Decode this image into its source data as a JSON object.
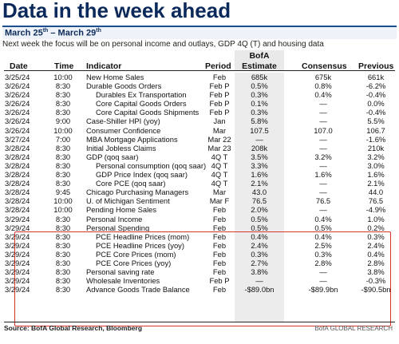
{
  "title": "Data in the week ahead",
  "date_range": {
    "start": "March 25",
    "start_sup": "th",
    "sep": " – ",
    "end": "March 29",
    "end_sup": "th"
  },
  "focus": "Next week the focus will be on personal income and outlays, GDP 4Q (T) and housing data",
  "columns": {
    "date": "Date",
    "time": "Time",
    "indicator": "Indicator",
    "period": "Period",
    "bofa_line1": "BofA",
    "bofa_line2": "Estimate",
    "consensus": "Consensus",
    "previous": "Previous"
  },
  "rows": [
    {
      "date": "3/25/24",
      "time": "10:00",
      "indicator": "New Home Sales",
      "period": "Feb",
      "estimate": "685k",
      "consensus": "675k",
      "previous": "661k",
      "indent": false
    },
    {
      "date": "3/26/24",
      "time": "8:30",
      "indicator": "Durable Goods Orders",
      "period": "Feb P",
      "estimate": "0.5%",
      "consensus": "0.8%",
      "previous": "-6.2%",
      "indent": false
    },
    {
      "date": "3/26/24",
      "time": "8:30",
      "indicator": "Durables Ex Transportation",
      "period": "Feb P",
      "estimate": "0.3%",
      "consensus": "0.4%",
      "previous": "-0.4%",
      "indent": true
    },
    {
      "date": "3/26/24",
      "time": "8:30",
      "indicator": "Core Capital Goods Orders",
      "period": "Feb P",
      "estimate": "0.1%",
      "consensus": "—",
      "previous": "0.0%",
      "indent": true
    },
    {
      "date": "3/26/24",
      "time": "8:30",
      "indicator": "Core Capital Goods Shipments",
      "period": "Feb P",
      "estimate": "0.3%",
      "consensus": "—",
      "previous": "-0.4%",
      "indent": true
    },
    {
      "date": "3/26/24",
      "time": "9:00",
      "indicator": "Case-Shiller HPI (yoy)",
      "period": "Jan",
      "estimate": "5.8%",
      "consensus": "—",
      "previous": "5.5%",
      "indent": false
    },
    {
      "date": "3/26/24",
      "time": "10:00",
      "indicator": "Consumer Confidence",
      "period": "Mar",
      "estimate": "107.5",
      "consensus": "107.0",
      "previous": "106.7",
      "indent": false
    },
    {
      "date": "3/27/24",
      "time": "7:00",
      "indicator": "MBA Mortgage Applications",
      "period": "Mar 22",
      "estimate": "—",
      "consensus": "—",
      "previous": "-1.6%",
      "indent": false
    },
    {
      "date": "3/28/24",
      "time": "8:30",
      "indicator": "Initial Jobless Claims",
      "period": "Mar 23",
      "estimate": "208k",
      "consensus": "—",
      "previous": "210k",
      "indent": false
    },
    {
      "date": "3/28/24",
      "time": "8:30",
      "indicator": "GDP (qoq saar)",
      "period": "4Q T",
      "estimate": "3.5%",
      "consensus": "3.2%",
      "previous": "3.2%",
      "indent": false
    },
    {
      "date": "3/28/24",
      "time": "8:30",
      "indicator": "Personal consumption (qoq saar)",
      "period": "4Q T",
      "estimate": "3.3%",
      "consensus": "—",
      "previous": "3.0%",
      "indent": true
    },
    {
      "date": "3/28/24",
      "time": "8:30",
      "indicator": "GDP Price Index (qoq saar)",
      "period": "4Q T",
      "estimate": "1.6%",
      "consensus": "1.6%",
      "previous": "1.6%",
      "indent": true
    },
    {
      "date": "3/28/24",
      "time": "8:30",
      "indicator": "Core PCE (qoq saar)",
      "period": "4Q T",
      "estimate": "2.1%",
      "consensus": "—",
      "previous": "2.1%",
      "indent": true
    },
    {
      "date": "3/28/24",
      "time": "9:45",
      "indicator": "Chicago Purchasing Managers",
      "period": "Mar",
      "estimate": "43.0",
      "consensus": "—",
      "previous": "44.0",
      "indent": false
    },
    {
      "date": "3/28/24",
      "time": "10:00",
      "indicator": "U. of Michigan Sentiment",
      "period": "Mar F",
      "estimate": "76.5",
      "consensus": "76.5",
      "previous": "76.5",
      "indent": false
    },
    {
      "date": "3/28/24",
      "time": "10:00",
      "indicator": "Pending Home Sales",
      "period": "Feb",
      "estimate": "2.0%",
      "consensus": "—",
      "previous": "-4.9%",
      "indent": false
    },
    {
      "date": "3/29/24",
      "time": "8:30",
      "indicator": "Personal Income",
      "period": "Feb",
      "estimate": "0.5%",
      "consensus": "0.4%",
      "previous": "1.0%",
      "indent": false
    },
    {
      "date": "3/29/24",
      "time": "8:30",
      "indicator": "Personal Spending",
      "period": "Feb",
      "estimate": "0.5%",
      "consensus": "0.5%",
      "previous": "0.2%",
      "indent": false
    },
    {
      "date": "3/29/24",
      "time": "8:30",
      "indicator": "PCE Headline Prices (mom)",
      "period": "Feb",
      "estimate": "0.4%",
      "consensus": "0.4%",
      "previous": "0.3%",
      "indent": true
    },
    {
      "date": "3/29/24",
      "time": "8:30",
      "indicator": "PCE Headline Prices (yoy)",
      "period": "Feb",
      "estimate": "2.4%",
      "consensus": "2.5%",
      "previous": "2.4%",
      "indent": true
    },
    {
      "date": "3/29/24",
      "time": "8:30",
      "indicator": "PCE Core Prices (mom)",
      "period": "Feb",
      "estimate": "0.3%",
      "consensus": "0.3%",
      "previous": "0.4%",
      "indent": true
    },
    {
      "date": "3/29/24",
      "time": "8:30",
      "indicator": "PCE Core Prices (yoy)",
      "period": "Feb",
      "estimate": "2.7%",
      "consensus": "2.8%",
      "previous": "2.8%",
      "indent": true
    },
    {
      "date": "3/29/24",
      "time": "8:30",
      "indicator": "Personal saving rate",
      "period": "Feb",
      "estimate": "3.8%",
      "consensus": "—",
      "previous": "3.8%",
      "indent": false
    },
    {
      "date": "3/29/24",
      "time": "8:30",
      "indicator": "Wholesale Inventories",
      "period": "Feb P",
      "estimate": "—",
      "consensus": "—",
      "previous": "-0.3%",
      "indent": false
    },
    {
      "date": "3/29/24",
      "time": "8:30",
      "indicator": "Advance Goods Trade Balance",
      "period": "Feb",
      "estimate": "-$89.0bn",
      "consensus": "-$89.9bn",
      "previous": "-$90.5bn",
      "indent": false
    }
  ],
  "source": "Source: BofA Global Research, Bloomberg",
  "brand": "BofA GLOBAL RESEARCH",
  "colors": {
    "title": "#0b2a5b",
    "accent_rule": "#1b4f8f",
    "highlight_box": "#d9342b",
    "estimate_shading": "#ececec"
  }
}
